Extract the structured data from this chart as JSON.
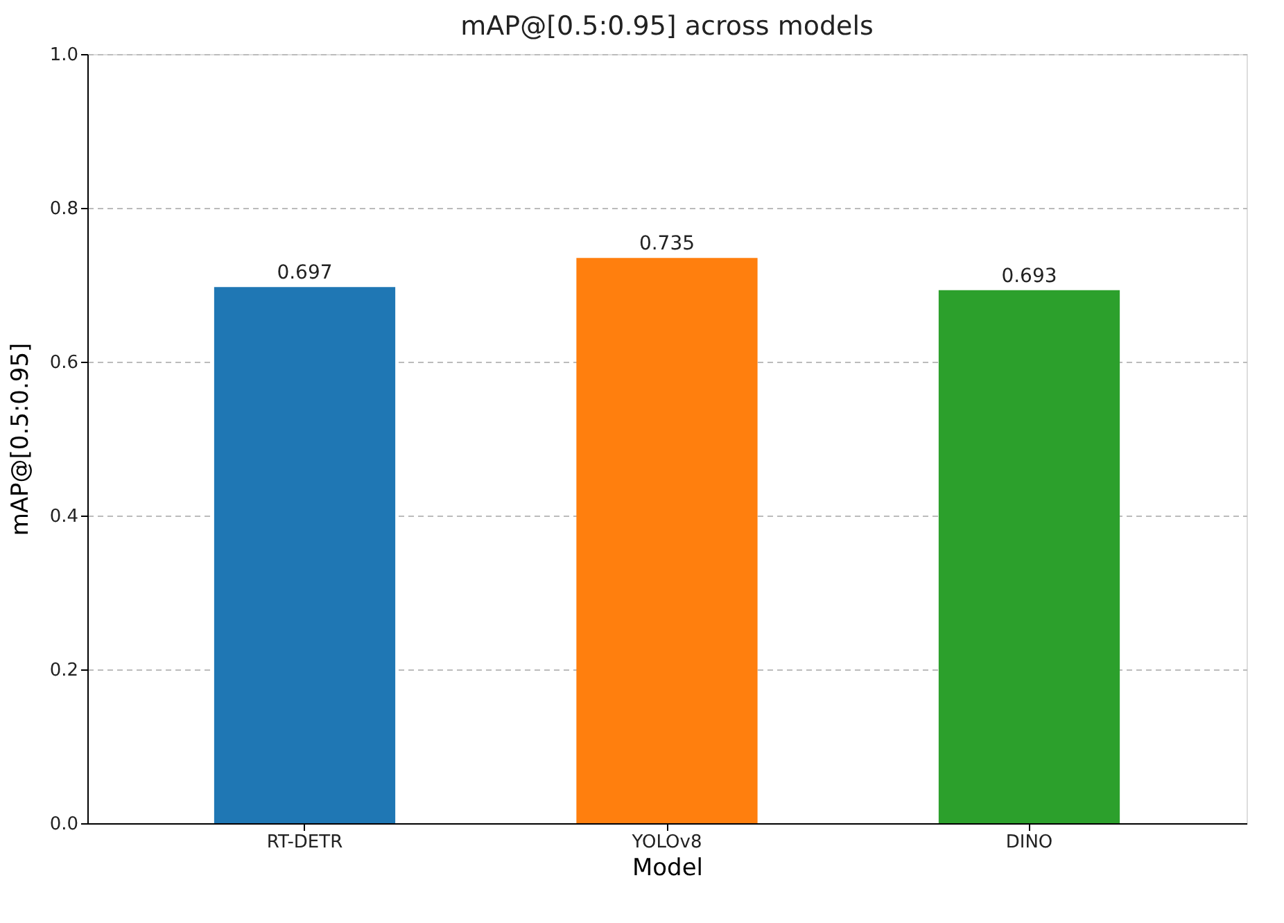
{
  "chart_data": {
    "type": "bar",
    "title": "mAP@[0.5:0.95] across models",
    "xlabel": "Model",
    "ylabel": "mAP@[0.5:0.95]",
    "categories": [
      "RT-DETR",
      "YOLOv8",
      "DINO"
    ],
    "values": [
      0.697,
      0.735,
      0.693
    ],
    "colors": [
      "#1f77b4",
      "#ff7f0e",
      "#2ca02c"
    ],
    "ylim": [
      0,
      1
    ],
    "yticks": [
      {
        "value": 0,
        "label": "0.0"
      },
      0.2,
      0.4,
      0.6,
      0.8,
      {
        "value": 1,
        "label": "1.0"
      }
    ],
    "grid": "y",
    "data_labels": true
  }
}
